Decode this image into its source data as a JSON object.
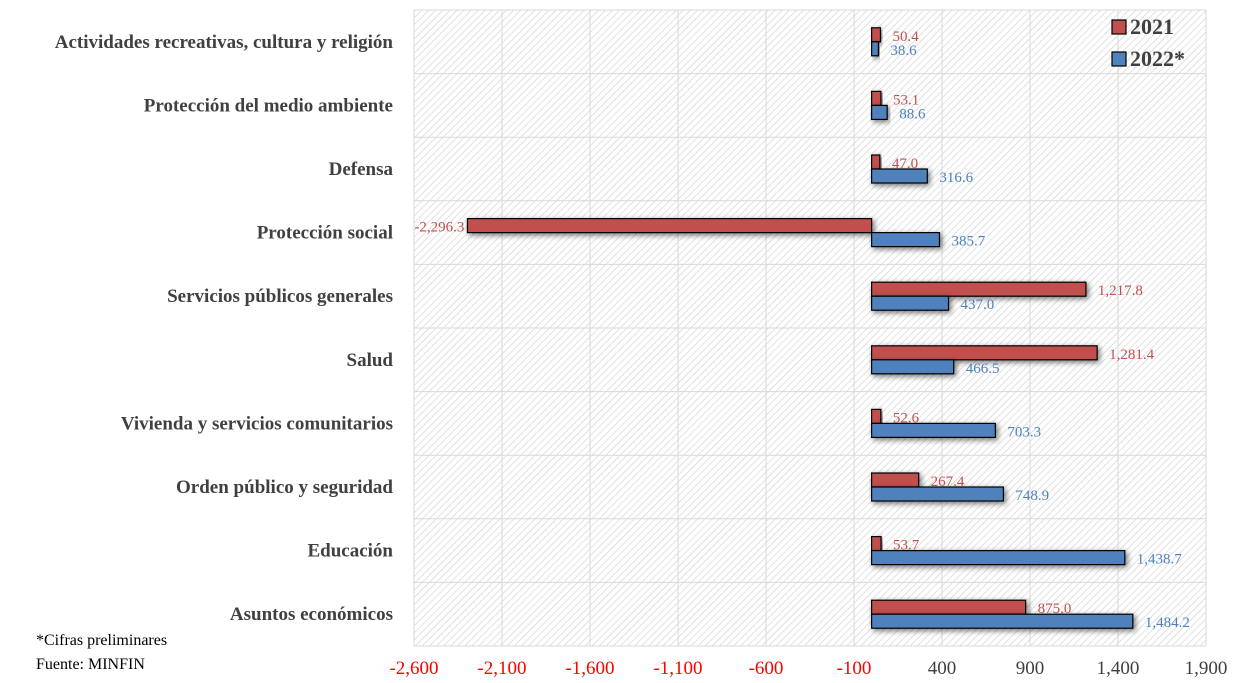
{
  "chart_data": {
    "type": "bar",
    "orientation": "horizontal",
    "categories": [
      "Actividades recreativas, cultura y religión",
      "Protección del medio ambiente",
      "Defensa",
      "Protección social",
      "Servicios públicos generales",
      "Salud",
      "Vivienda y servicios comunitarios",
      "Orden público y seguridad",
      "Educación",
      "Asuntos económicos"
    ],
    "series": [
      {
        "name": "2021",
        "color": "#c0504d",
        "values": [
          50.4,
          53.1,
          47.0,
          -2296.3,
          1217.8,
          1281.4,
          52.6,
          267.4,
          53.7,
          875.0
        ],
        "labels": [
          "50.4",
          "53.1",
          "47.0",
          "-2,296.3",
          "1,217.8",
          "1,281.4",
          "52.6",
          "267.4",
          "53.7",
          "875.0"
        ]
      },
      {
        "name": "2022*",
        "color": "#4f81bd",
        "values": [
          38.6,
          88.6,
          316.6,
          385.7,
          437.0,
          466.5,
          703.3,
          748.9,
          1438.7,
          1484.2
        ],
        "labels": [
          "38.6",
          "88.6",
          "316.6",
          "385.7",
          "437.0",
          "466.5",
          "703.3",
          "748.9",
          "1,438.7",
          "1,484.2"
        ]
      }
    ],
    "xlim": [
      -2600,
      1900
    ],
    "xticks": [
      -2600,
      -2100,
      -1600,
      -1100,
      -600,
      -100,
      400,
      900,
      1400,
      1900
    ],
    "xtick_labels": [
      "-2,600",
      "-2,100",
      "-1,600",
      "-1,100",
      "-600",
      "-100",
      "400",
      "900",
      "1,400",
      "1,900"
    ],
    "negative_tick_color": "#ff0000",
    "positive_tick_color": "#404040",
    "legend": "top-right",
    "grid": true
  },
  "notes": {
    "preliminary": "*Cifras preliminares",
    "source": "Fuente: MINFIN"
  }
}
